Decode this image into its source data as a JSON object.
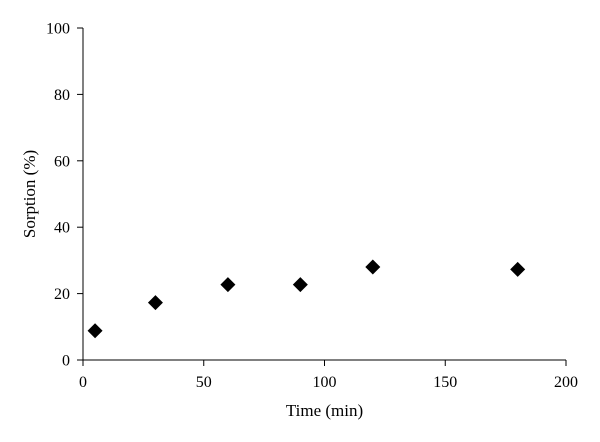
{
  "chart_data": {
    "type": "scatter",
    "xlabel": "Time (min)",
    "ylabel": "Sorption (%)",
    "xlim": [
      0,
      200
    ],
    "ylim": [
      0,
      100
    ],
    "x_ticks": [
      0,
      50,
      100,
      150,
      200
    ],
    "y_ticks": [
      0,
      20,
      40,
      60,
      80,
      100
    ],
    "x_tick_labels": [
      "0",
      "50",
      "100",
      "150",
      "200"
    ],
    "y_tick_labels": [
      "0",
      "20",
      "40",
      "60",
      "80",
      "100"
    ],
    "grid": false,
    "marker": "diamond",
    "marker_color": "#000000",
    "series": [
      {
        "x": [
          5,
          30,
          60,
          90,
          120,
          180
        ],
        "y": [
          8.8,
          17.3,
          22.7,
          22.7,
          28.0,
          27.3
        ]
      }
    ]
  }
}
